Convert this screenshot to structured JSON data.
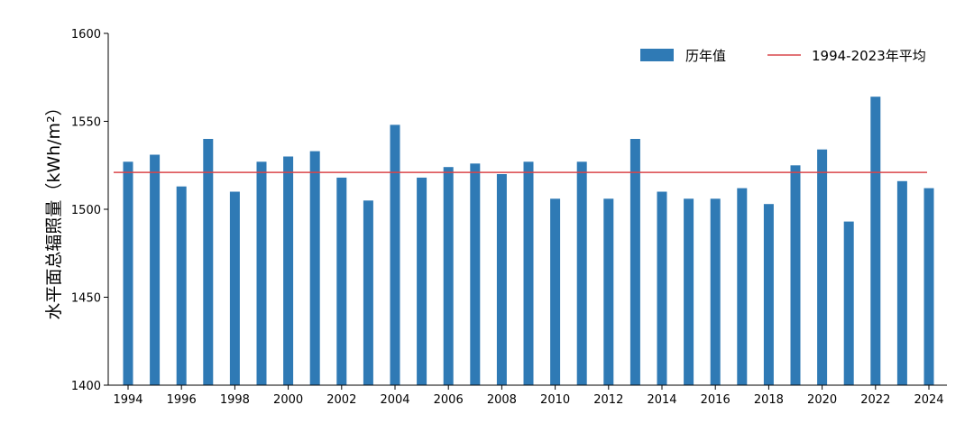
{
  "chart_data": {
    "type": "bar",
    "ylabel": "水平面总辐照量（kWh/m²）",
    "xlabel": "",
    "title": "",
    "ylim": [
      1400,
      1600
    ],
    "yticks": [
      1400,
      1450,
      1500,
      1550,
      1600
    ],
    "xticks": [
      1994,
      1996,
      1998,
      2000,
      2002,
      2004,
      2006,
      2008,
      2010,
      2012,
      2014,
      2016,
      2018,
      2020,
      2022,
      2024
    ],
    "grid": false,
    "legend_position": "top-right",
    "categories": [
      1994,
      1995,
      1996,
      1997,
      1998,
      1999,
      2000,
      2001,
      2002,
      2003,
      2004,
      2005,
      2006,
      2007,
      2008,
      2009,
      2010,
      2011,
      2012,
      2013,
      2014,
      2015,
      2016,
      2017,
      2018,
      2019,
      2020,
      2021,
      2022,
      2023,
      2024
    ],
    "series": [
      {
        "name": "历年值",
        "color": "#2f7ab5",
        "values": [
          1527,
          1531,
          1513,
          1540,
          1510,
          1527,
          1530,
          1533,
          1518,
          1505,
          1548,
          1518,
          1524,
          1526,
          1520,
          1527,
          1506,
          1527,
          1506,
          1540,
          1510,
          1506,
          1506,
          1512,
          1503,
          1525,
          1534,
          1493,
          1564,
          1516,
          1512
        ]
      }
    ],
    "reference_line": {
      "name": "1994-2023年平均",
      "color": "#d9464a",
      "value": 1521
    }
  }
}
